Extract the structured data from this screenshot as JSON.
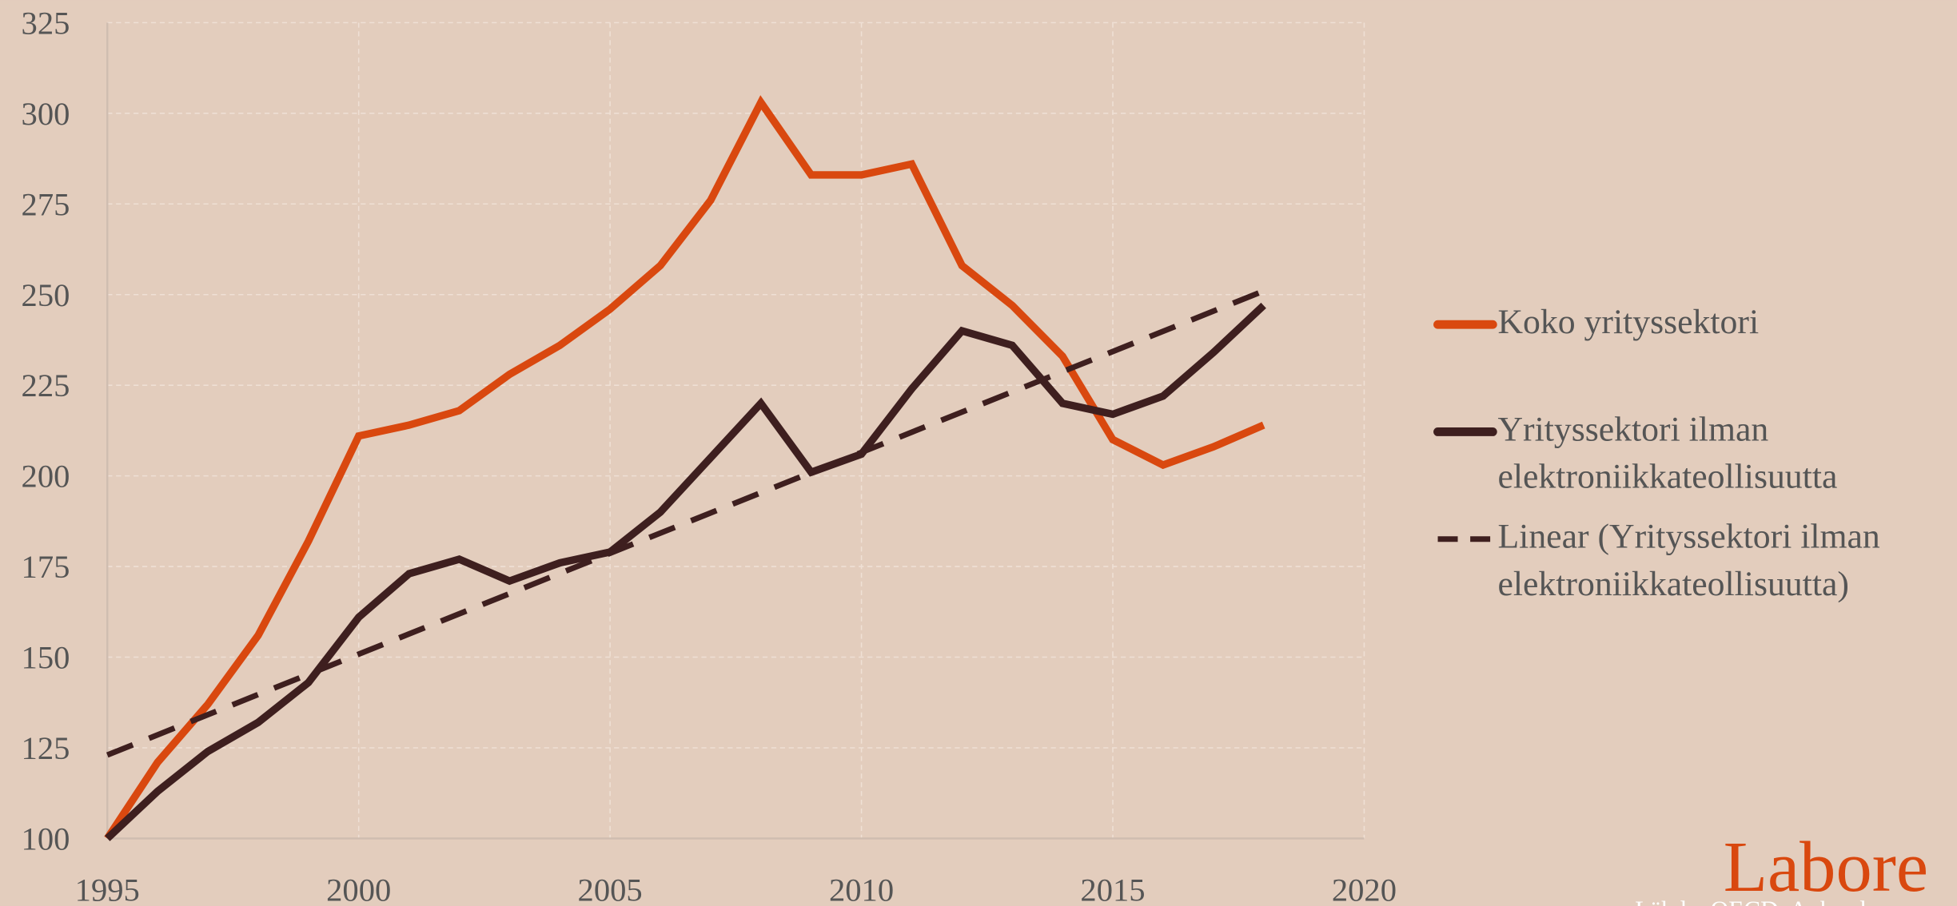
{
  "chart_data": {
    "type": "line",
    "x": [
      1995,
      1996,
      1997,
      1998,
      1999,
      2000,
      2001,
      2002,
      2003,
      2004,
      2005,
      2006,
      2007,
      2008,
      2009,
      2010,
      2011,
      2012,
      2013,
      2014,
      2015,
      2016,
      2017,
      2018
    ],
    "series": [
      {
        "name": "Koko yrityssektori",
        "color": "#d9480f",
        "values": [
          100,
          121,
          137,
          156,
          182,
          211,
          214,
          218,
          228,
          236,
          246,
          258,
          276,
          303,
          283,
          283,
          286,
          258,
          247,
          233,
          210,
          203,
          208,
          214
        ]
      },
      {
        "name": "Yrityssektori ilman elektroniikkateollisuutta",
        "color": "#3e1f1f",
        "values": [
          100,
          113,
          124,
          132,
          143,
          161,
          173,
          177,
          171,
          176,
          179,
          190,
          205,
          220,
          201,
          206,
          224,
          240,
          236,
          220,
          217,
          222,
          234,
          247
        ]
      },
      {
        "name": "Linear (Yrityssektori ilman elektroniikkateollisuutta)",
        "color": "#3e1f1f",
        "dashed": true,
        "x": [
          1995,
          2018
        ],
        "values": [
          123,
          251
        ]
      }
    ],
    "xlim": [
      1995,
      2020
    ],
    "xticks": [
      1995,
      2000,
      2005,
      2010,
      2015,
      2020
    ],
    "ylim": [
      100,
      325
    ],
    "yticks": [
      100,
      125,
      150,
      175,
      200,
      225,
      250,
      275,
      300,
      325
    ],
    "grid": true,
    "legend": "right",
    "logo": "Labore",
    "source": "Lähde: OECD, Anhord"
  }
}
